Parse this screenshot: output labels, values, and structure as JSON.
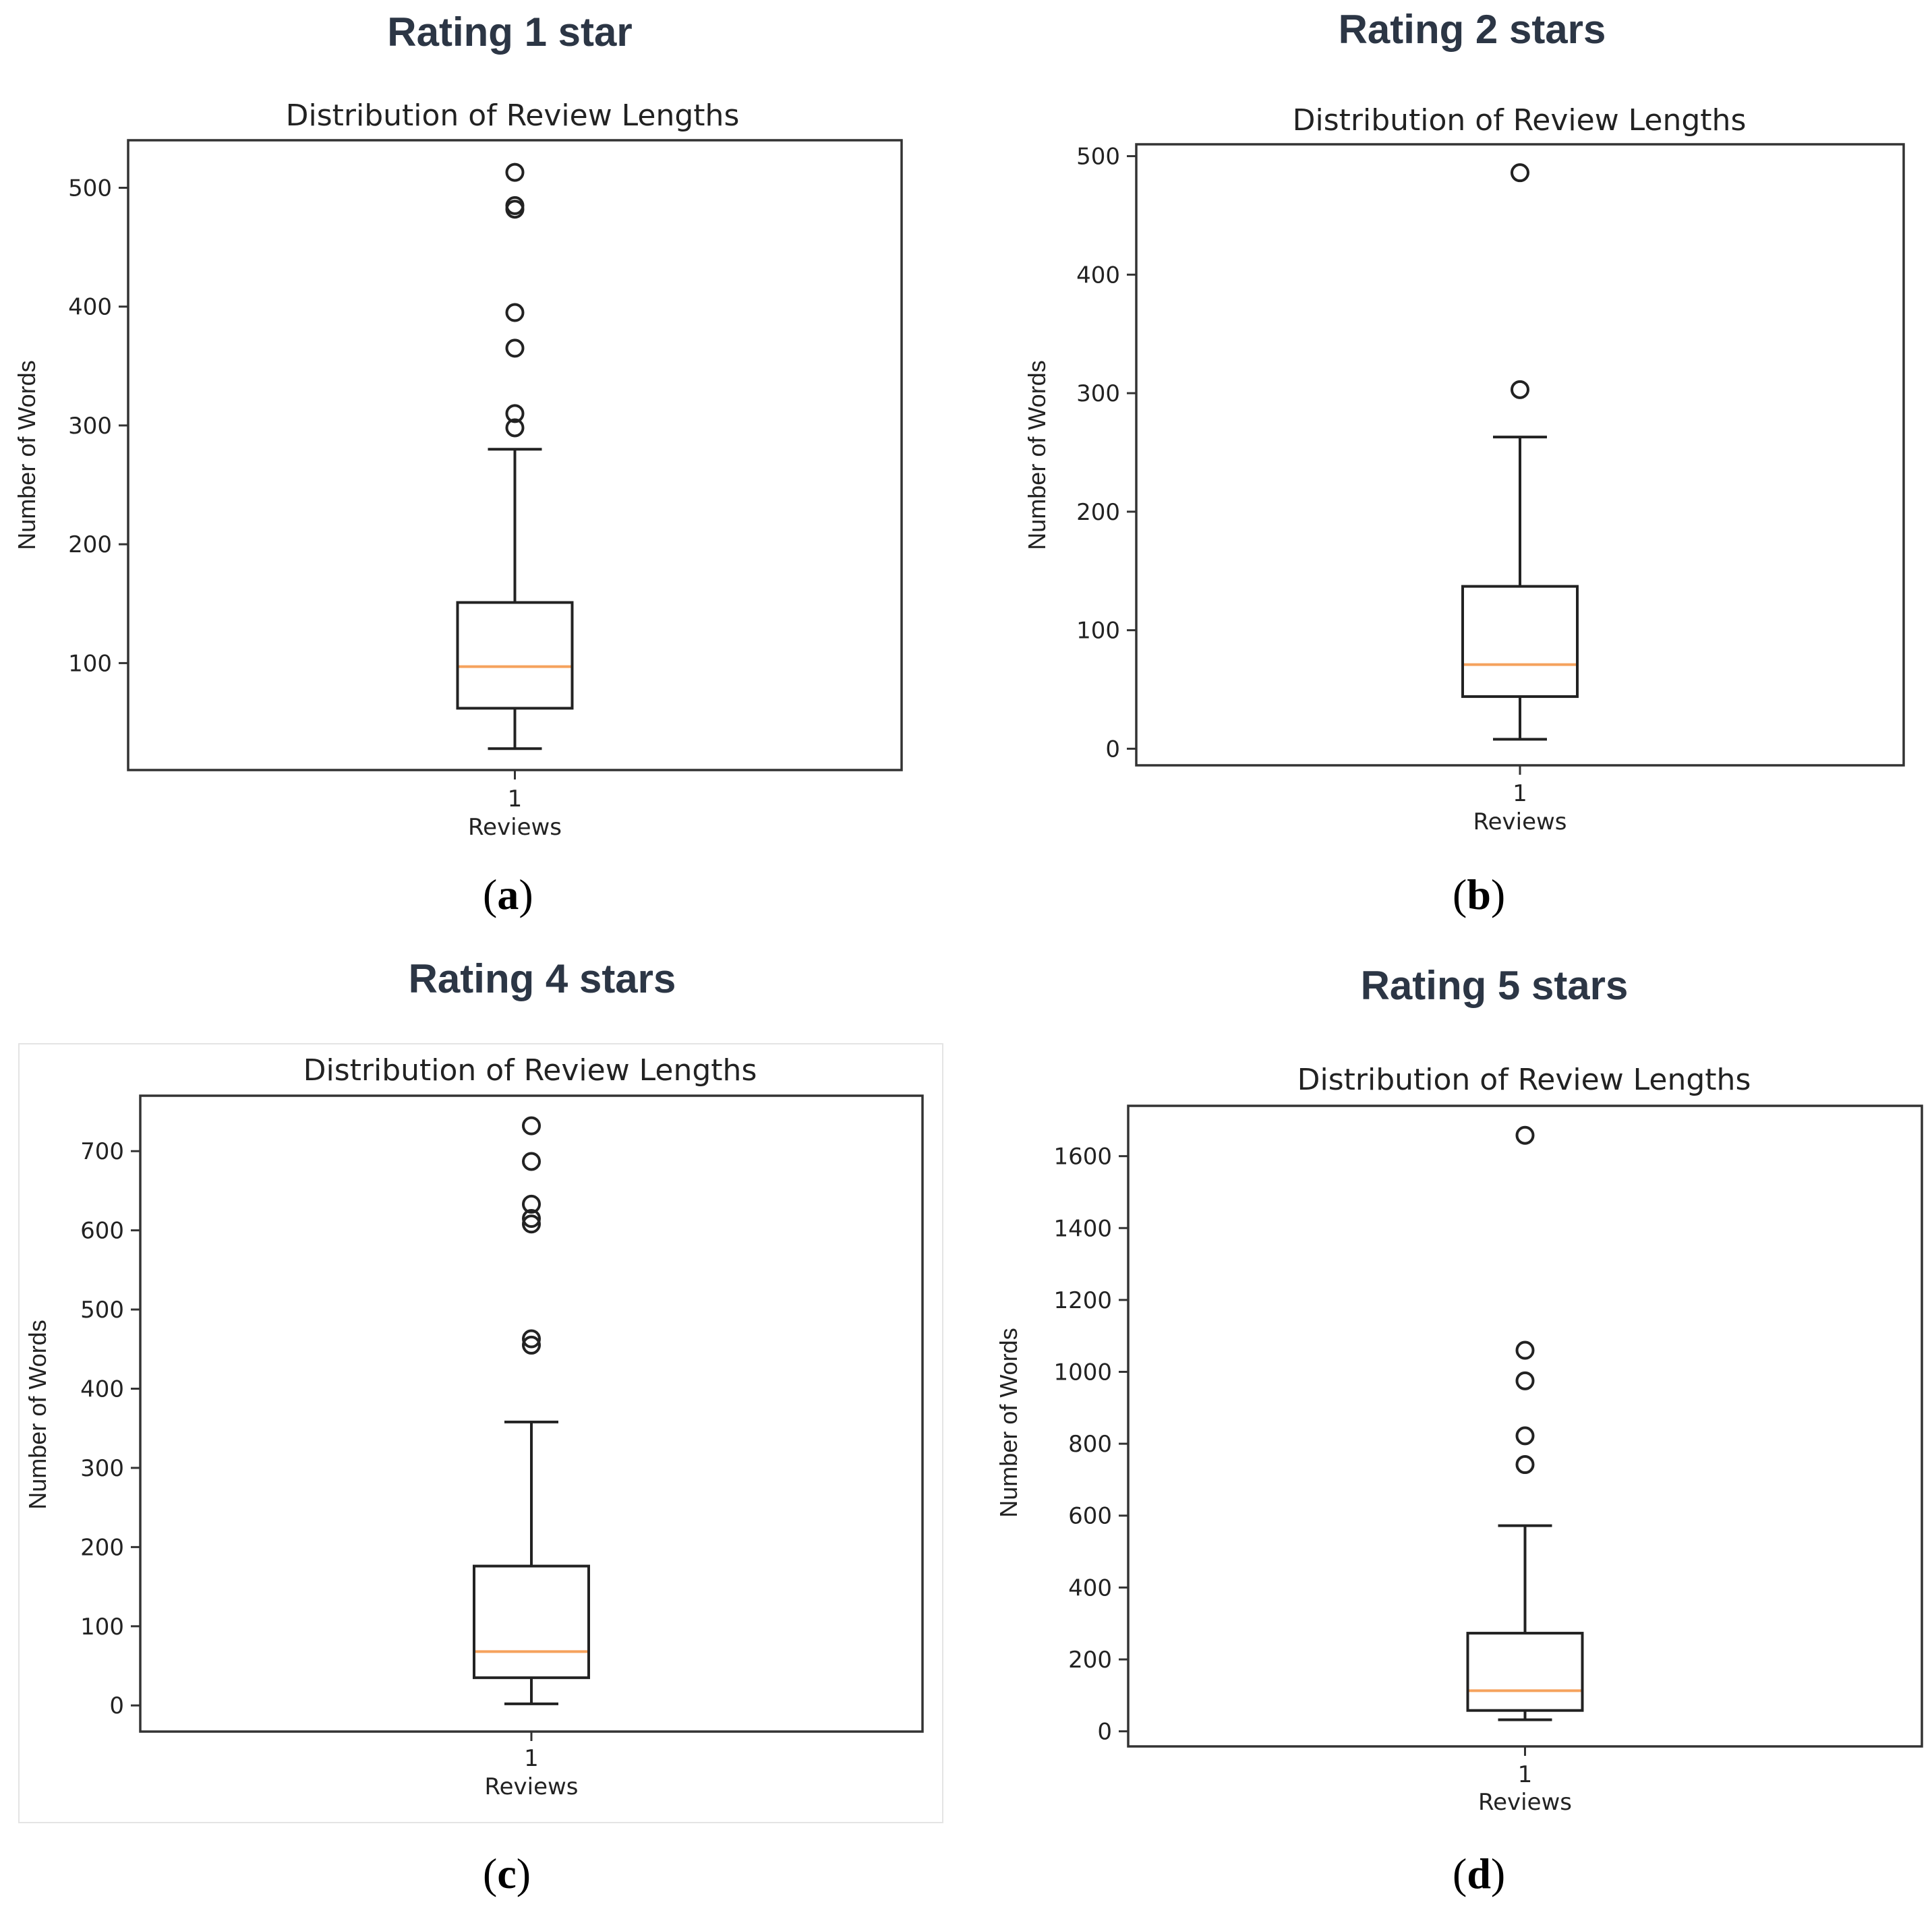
{
  "chart_data": [
    {
      "type": "box",
      "panel": "a",
      "main_title": "Rating 1 star",
      "title": "Distribution of Review Lengths",
      "xlabel": "Reviews",
      "ylabel": "Number of Words",
      "categories": [
        "1"
      ],
      "ylim": [
        10,
        540
      ],
      "yticks": [
        100,
        200,
        300,
        400,
        500
      ],
      "box": {
        "whisker_low": 28,
        "q1": 62,
        "median": 97,
        "q3": 151,
        "whisker_high": 280
      },
      "outliers": [
        298,
        310,
        365,
        395,
        482,
        485,
        513
      ],
      "caption": "a"
    },
    {
      "type": "box",
      "panel": "b",
      "main_title": "Rating 2 stars",
      "title": "Distribution of Review Lengths",
      "xlabel": "Reviews",
      "ylabel": "Number of Words",
      "categories": [
        "1"
      ],
      "ylim": [
        -14,
        510
      ],
      "yticks": [
        0,
        100,
        200,
        300,
        400,
        500
      ],
      "box": {
        "whisker_low": 8,
        "q1": 44,
        "median": 71,
        "q3": 137,
        "whisker_high": 263
      },
      "outliers": [
        303,
        486
      ],
      "caption": "b"
    },
    {
      "type": "box",
      "panel": "c",
      "main_title": "Rating 4 stars",
      "title": "Distribution of Review Lengths",
      "xlabel": "Reviews",
      "ylabel": "Number of Words",
      "categories": [
        "1"
      ],
      "ylim": [
        -33,
        770
      ],
      "yticks": [
        0,
        100,
        200,
        300,
        400,
        500,
        600,
        700
      ],
      "box": {
        "whisker_low": 2,
        "q1": 35,
        "median": 68,
        "q3": 176,
        "whisker_high": 358
      },
      "outliers": [
        455,
        463,
        608,
        615,
        633,
        687,
        732
      ],
      "caption": "c"
    },
    {
      "type": "box",
      "panel": "d",
      "main_title": "Rating 5 stars",
      "title": "Distribution of Review Lengths",
      "xlabel": "Reviews",
      "ylabel": "Number of Words",
      "categories": [
        "1"
      ],
      "ylim": [
        -42,
        1740
      ],
      "yticks": [
        0,
        200,
        400,
        600,
        800,
        1000,
        1200,
        1400,
        1600
      ],
      "box": {
        "whisker_low": 32,
        "q1": 58,
        "median": 113,
        "q3": 273,
        "whisker_high": 572
      },
      "outliers": [
        742,
        822,
        975,
        1060,
        1658
      ],
      "caption": "d"
    }
  ]
}
